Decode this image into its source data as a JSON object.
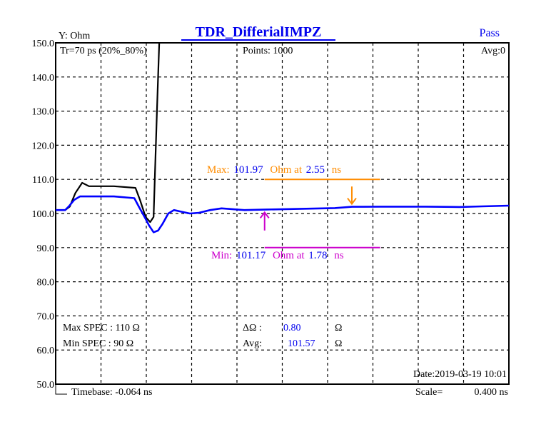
{
  "chart_data": {
    "type": "line",
    "title": "TDR_DifferialIMPZ",
    "status": "Pass",
    "ylabel": "Y: Ohm",
    "ylim": [
      50,
      150
    ],
    "xlim": [
      -0.064,
      3.936
    ],
    "yticks": [
      "150.0",
      "140.0",
      "130.0",
      "120.0",
      "110.0",
      "100.0",
      "90.0",
      "80.0",
      "70.0",
      "60.0",
      "50.0"
    ],
    "grid": true,
    "header": {
      "rise_time": "Tr=70  ps (20%_80%)",
      "points": "Points: 1000",
      "avg": "Avg:0"
    },
    "series": [
      {
        "color": "#000000",
        "points": [
          [
            -0.064,
            101
          ],
          [
            0.02,
            101
          ],
          [
            0.06,
            102
          ],
          [
            0.11,
            106
          ],
          [
            0.17,
            109
          ],
          [
            0.23,
            108
          ],
          [
            0.3,
            108
          ],
          [
            0.45,
            108
          ],
          [
            0.64,
            107.5
          ],
          [
            0.68,
            104
          ],
          [
            0.73,
            99
          ],
          [
            0.77,
            97.5
          ],
          [
            0.8,
            99
          ],
          [
            0.83,
            130
          ],
          [
            0.85,
            150
          ]
        ]
      },
      {
        "color": "#0000ff",
        "points": [
          [
            -0.064,
            101
          ],
          [
            0.02,
            101
          ],
          [
            0.05,
            102
          ],
          [
            0.1,
            104
          ],
          [
            0.15,
            105
          ],
          [
            0.3,
            105
          ],
          [
            0.45,
            105
          ],
          [
            0.63,
            104.5
          ],
          [
            0.67,
            102
          ],
          [
            0.72,
            99
          ],
          [
            0.76,
            96.5
          ],
          [
            0.8,
            94.5
          ],
          [
            0.84,
            95
          ],
          [
            0.88,
            97
          ],
          [
            0.93,
            100
          ],
          [
            0.98,
            101
          ],
          [
            1.05,
            100.5
          ],
          [
            1.12,
            100
          ],
          [
            1.2,
            100.2
          ],
          [
            1.3,
            101
          ],
          [
            1.4,
            101.5
          ],
          [
            1.6,
            101
          ],
          [
            1.8,
            101.17
          ],
          [
            2.0,
            101.3
          ],
          [
            2.4,
            101.6
          ],
          [
            2.55,
            101.97
          ],
          [
            2.8,
            102
          ],
          [
            3.2,
            102
          ],
          [
            3.5,
            101.9
          ],
          [
            3.7,
            102.1
          ],
          [
            3.936,
            102.3
          ]
        ]
      }
    ],
    "markers": {
      "max": {
        "x": 2.55,
        "y": 101.97,
        "label": "Max:",
        "value": "101.97",
        "unit": "Ohm at",
        "x_label": "2.55",
        "x_unit": "ns",
        "level": 110,
        "line_x": [
          1.78,
          2.8
        ],
        "color": "#ff8c00"
      },
      "min": {
        "x": 1.78,
        "y": 101.17,
        "label": "Min:",
        "value": "101.17",
        "unit": "Ohm at",
        "x_label": "1.78",
        "x_unit": "ns",
        "level": 90,
        "line_x": [
          1.78,
          2.8
        ],
        "color": "#cc00cc"
      }
    },
    "spec": {
      "max_label": "Max SPEC : 110 Ω",
      "min_label": "Min SPEC : 90  Ω",
      "delta_label": "ΔΩ :",
      "delta_value": "0.80",
      "delta_unit": "Ω",
      "avg_label": "Avg:",
      "avg_value": "101.57",
      "avg_unit": "Ω"
    },
    "footer": {
      "date": "Date:2019-03-19 10:01",
      "timebase": "Timebase: -0.064  ns",
      "scale_label": "Scale=",
      "scale_value": "0.400 ns"
    }
  }
}
